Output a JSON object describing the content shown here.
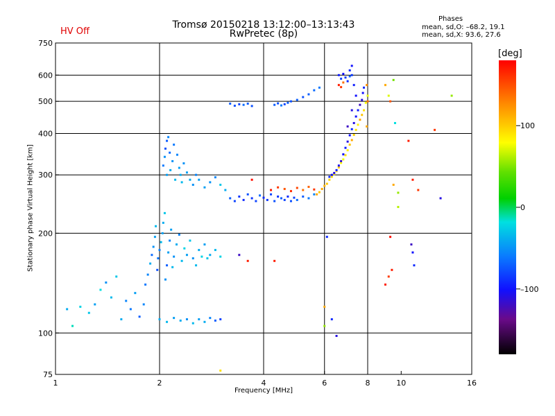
{
  "header": {
    "title": "Tromsø 20150218 13:12:00–13:13:43",
    "subtitle": "RwPretec (8p)",
    "status": "HV Off",
    "status_color": "#e00000"
  },
  "phases": {
    "title": "Phases",
    "o_line": "mean, sd,O: –68.2, 19.1",
    "x_line": "mean, sd,X:  93.6, 27.6"
  },
  "colorbar": {
    "unit": "[deg]",
    "ticks": [
      {
        "value": 100,
        "label": "100"
      },
      {
        "value": 0,
        "label": "0"
      },
      {
        "value": -100,
        "label": "–100"
      }
    ],
    "range": [
      -180,
      180
    ]
  },
  "chart_data": {
    "type": "scatter",
    "xlabel": "Frequency [MHz]",
    "ylabel": "Stationary phase Virtual Height [km]",
    "x_scale": "log",
    "y_scale": "log",
    "xlim": [
      1,
      16
    ],
    "ylim": [
      75,
      750
    ],
    "x_ticks": [
      {
        "value": 1,
        "label": "1"
      },
      {
        "value": 2,
        "label": "2"
      },
      {
        "value": 4,
        "label": "4"
      },
      {
        "value": 6,
        "label": "6"
      },
      {
        "value": 8,
        "label": "8"
      },
      {
        "value": 10,
        "label": "10"
      },
      {
        "value": 16,
        "label": "16"
      }
    ],
    "y_ticks": [
      {
        "value": 75,
        "label": "75"
      },
      {
        "value": 100,
        "label": "100"
      },
      {
        "value": 200,
        "label": "200"
      },
      {
        "value": 300,
        "label": "300"
      },
      {
        "value": 400,
        "label": "400"
      },
      {
        "value": 500,
        "label": "500"
      },
      {
        "value": 600,
        "label": "600"
      },
      {
        "value": 750,
        "label": "750"
      }
    ],
    "grid_x": [
      2,
      4,
      6,
      8
    ],
    "grid_y": [
      100,
      200,
      300,
      400,
      500,
      600
    ],
    "points": [
      [
        1.08,
        118,
        -40
      ],
      [
        1.12,
        105,
        -15
      ],
      [
        1.18,
        120,
        -25
      ],
      [
        1.25,
        115,
        -30
      ],
      [
        1.3,
        122,
        -45
      ],
      [
        1.35,
        135,
        -20
      ],
      [
        1.4,
        142,
        -50
      ],
      [
        1.45,
        128,
        -35
      ],
      [
        1.5,
        148,
        -30
      ],
      [
        1.55,
        110,
        -40
      ],
      [
        1.6,
        125,
        -55
      ],
      [
        1.65,
        118,
        -60
      ],
      [
        1.7,
        132,
        -45
      ],
      [
        1.75,
        112,
        -70
      ],
      [
        1.8,
        122,
        -55
      ],
      [
        1.82,
        140,
        -60
      ],
      [
        1.85,
        150,
        -55
      ],
      [
        1.88,
        162,
        -40
      ],
      [
        1.9,
        172,
        -65
      ],
      [
        1.92,
        182,
        -50
      ],
      [
        1.94,
        195,
        -45
      ],
      [
        1.95,
        210,
        -35
      ],
      [
        1.97,
        155,
        -75
      ],
      [
        1.98,
        168,
        -60
      ],
      [
        2.0,
        178,
        -55
      ],
      [
        2.02,
        188,
        -35
      ],
      [
        2.04,
        200,
        -45
      ],
      [
        2.05,
        215,
        -40
      ],
      [
        2.07,
        230,
        -30
      ],
      [
        2.08,
        145,
        -50
      ],
      [
        2.1,
        160,
        -70
      ],
      [
        2.12,
        175,
        -45
      ],
      [
        2.14,
        190,
        -55
      ],
      [
        2.16,
        205,
        -45
      ],
      [
        2.18,
        158,
        -35
      ],
      [
        2.2,
        170,
        -50
      ],
      [
        2.24,
        185,
        -40
      ],
      [
        2.28,
        198,
        -55
      ],
      [
        2.32,
        165,
        -35
      ],
      [
        2.36,
        180,
        -25
      ],
      [
        2.4,
        172,
        -45
      ],
      [
        2.45,
        190,
        -30
      ],
      [
        2.5,
        168,
        -50
      ],
      [
        2.55,
        160,
        -35
      ],
      [
        2.6,
        178,
        -40
      ],
      [
        2.65,
        170,
        -25
      ],
      [
        2.7,
        185,
        -45
      ],
      [
        2.75,
        168,
        -30
      ],
      [
        2.8,
        172,
        -40
      ],
      [
        2.9,
        178,
        -35
      ],
      [
        3.0,
        170,
        -25
      ],
      [
        2.05,
        320,
        -60
      ],
      [
        2.07,
        340,
        -50
      ],
      [
        2.08,
        360,
        -75
      ],
      [
        2.1,
        380,
        -70
      ],
      [
        2.1,
        300,
        -45
      ],
      [
        2.12,
        390,
        -55
      ],
      [
        2.14,
        350,
        -65
      ],
      [
        2.15,
        310,
        -40
      ],
      [
        2.18,
        330,
        -50
      ],
      [
        2.2,
        370,
        -60
      ],
      [
        2.22,
        290,
        -35
      ],
      [
        2.25,
        345,
        -55
      ],
      [
        2.28,
        315,
        -45
      ],
      [
        2.3,
        300,
        -40
      ],
      [
        2.32,
        285,
        -35
      ],
      [
        2.35,
        325,
        -50
      ],
      [
        2.4,
        305,
        -45
      ],
      [
        2.45,
        290,
        -40
      ],
      [
        2.5,
        280,
        -50
      ],
      [
        2.55,
        300,
        -55
      ],
      [
        2.6,
        290,
        -45
      ],
      [
        2.7,
        275,
        -45
      ],
      [
        2.8,
        285,
        -50
      ],
      [
        2.9,
        295,
        -55
      ],
      [
        3.0,
        280,
        -30
      ],
      [
        3.1,
        270,
        -40
      ],
      [
        3.2,
        255,
        -70
      ],
      [
        3.3,
        250,
        -80
      ],
      [
        3.4,
        258,
        -85
      ],
      [
        3.5,
        252,
        -90
      ],
      [
        3.6,
        262,
        -75
      ],
      [
        3.7,
        255,
        -85
      ],
      [
        3.8,
        250,
        -80
      ],
      [
        3.9,
        260,
        -65
      ],
      [
        4.0,
        256,
        -90
      ],
      [
        4.1,
        252,
        -85
      ],
      [
        4.2,
        262,
        -80
      ],
      [
        4.3,
        250,
        -75
      ],
      [
        4.4,
        258,
        -85
      ],
      [
        4.5,
        255,
        -70
      ],
      [
        4.6,
        252,
        -80
      ],
      [
        4.7,
        258,
        -90
      ],
      [
        4.8,
        250,
        -75
      ],
      [
        4.9,
        256,
        -80
      ],
      [
        5.0,
        252,
        -65
      ],
      [
        5.2,
        258,
        -70
      ],
      [
        5.4,
        255,
        -60
      ],
      [
        5.6,
        262,
        -55
      ],
      [
        4.2,
        270,
        170
      ],
      [
        4.4,
        275,
        160
      ],
      [
        4.6,
        272,
        150
      ],
      [
        4.8,
        268,
        165
      ],
      [
        5.0,
        274,
        155
      ],
      [
        5.2,
        270,
        140
      ],
      [
        5.4,
        276,
        145
      ],
      [
        5.6,
        271,
        160
      ],
      [
        3.7,
        290,
        175
      ],
      [
        5.7,
        262,
        120
      ],
      [
        5.8,
        266,
        110
      ],
      [
        5.9,
        272,
        120
      ],
      [
        6.0,
        278,
        115
      ],
      [
        6.1,
        282,
        110
      ],
      [
        6.2,
        290,
        105
      ],
      [
        6.3,
        296,
        100
      ],
      [
        6.4,
        302,
        95
      ],
      [
        6.5,
        308,
        105
      ],
      [
        6.6,
        316,
        110
      ],
      [
        6.7,
        326,
        90
      ],
      [
        6.8,
        334,
        85
      ],
      [
        6.9,
        344,
        100
      ],
      [
        7.0,
        356,
        95
      ],
      [
        7.1,
        370,
        110
      ],
      [
        7.2,
        382,
        120
      ],
      [
        7.3,
        396,
        105
      ],
      [
        7.4,
        410,
        100
      ],
      [
        7.5,
        425,
        95
      ],
      [
        7.6,
        440,
        120
      ],
      [
        7.7,
        455,
        110
      ],
      [
        7.8,
        470,
        100
      ],
      [
        7.9,
        495,
        90
      ],
      [
        8.0,
        520,
        85
      ],
      [
        7.95,
        560,
        130
      ],
      [
        8.0,
        500,
        140
      ],
      [
        7.95,
        420,
        120
      ],
      [
        6.2,
        296,
        -90
      ],
      [
        6.3,
        300,
        -100
      ],
      [
        6.4,
        304,
        -110
      ],
      [
        6.5,
        310,
        -95
      ],
      [
        6.6,
        320,
        -105
      ],
      [
        6.7,
        330,
        -115
      ],
      [
        6.8,
        346,
        -100
      ],
      [
        6.9,
        362,
        -95
      ],
      [
        7.0,
        378,
        -110
      ],
      [
        7.1,
        395,
        -100
      ],
      [
        7.2,
        412,
        -90
      ],
      [
        7.3,
        430,
        -110
      ],
      [
        7.4,
        450,
        -100
      ],
      [
        7.5,
        470,
        -95
      ],
      [
        7.6,
        488,
        -120
      ],
      [
        7.7,
        505,
        -110
      ],
      [
        7.75,
        530,
        -100
      ],
      [
        7.8,
        550,
        -90
      ],
      [
        7.0,
        420,
        -120
      ],
      [
        7.2,
        470,
        -110
      ],
      [
        7.4,
        520,
        -100
      ],
      [
        7.3,
        560,
        -95
      ],
      [
        7.2,
        600,
        -85
      ],
      [
        6.6,
        600,
        -95
      ],
      [
        6.7,
        585,
        -80
      ],
      [
        6.8,
        605,
        -100
      ],
      [
        6.9,
        590,
        -85
      ],
      [
        7.0,
        575,
        -90
      ],
      [
        7.1,
        595,
        -70
      ],
      [
        7.2,
        640,
        -100
      ],
      [
        7.1,
        620,
        -90
      ],
      [
        3.2,
        492,
        -70
      ],
      [
        3.3,
        485,
        -75
      ],
      [
        3.4,
        490,
        -80
      ],
      [
        3.5,
        488,
        -65
      ],
      [
        3.6,
        492,
        -70
      ],
      [
        3.7,
        484,
        -75
      ],
      [
        4.3,
        488,
        -70
      ],
      [
        4.4,
        493,
        -75
      ],
      [
        4.5,
        486,
        -60
      ],
      [
        4.6,
        490,
        -80
      ],
      [
        4.7,
        495,
        -70
      ],
      [
        4.8,
        500,
        -75
      ],
      [
        5.0,
        505,
        -70
      ],
      [
        5.2,
        515,
        -75
      ],
      [
        5.4,
        525,
        -70
      ],
      [
        5.6,
        540,
        -65
      ],
      [
        5.8,
        550,
        -60
      ],
      [
        6.6,
        560,
        170
      ],
      [
        6.7,
        552,
        160
      ],
      [
        6.8,
        570,
        140
      ],
      [
        2.0,
        110,
        -40
      ],
      [
        2.1,
        108,
        -35
      ],
      [
        2.2,
        111,
        -45
      ],
      [
        2.3,
        109,
        -40
      ],
      [
        2.4,
        110,
        -50
      ],
      [
        2.5,
        107,
        -35
      ],
      [
        2.6,
        110,
        -45
      ],
      [
        2.7,
        108,
        -40
      ],
      [
        2.8,
        111,
        -55
      ],
      [
        2.9,
        109,
        -70
      ],
      [
        3.0,
        110,
        -80
      ],
      [
        9.0,
        560,
        120
      ],
      [
        9.2,
        520,
        80
      ],
      [
        9.5,
        580,
        50
      ],
      [
        9.3,
        500,
        150
      ],
      [
        9.6,
        430,
        -20
      ],
      [
        10.5,
        380,
        170
      ],
      [
        10.8,
        290,
        170
      ],
      [
        11.2,
        270,
        160
      ],
      [
        12.5,
        410,
        160
      ],
      [
        13.0,
        255,
        -110
      ],
      [
        14.0,
        520,
        60
      ],
      [
        9.3,
        195,
        175
      ],
      [
        9.4,
        155,
        170
      ],
      [
        9.2,
        148,
        160
      ],
      [
        9.5,
        280,
        120
      ],
      [
        10.7,
        185,
        -120
      ],
      [
        10.8,
        175,
        -100
      ],
      [
        10.9,
        160,
        -90
      ],
      [
        9.0,
        140,
        170
      ],
      [
        9.8,
        265,
        60
      ],
      [
        9.8,
        240,
        70
      ],
      [
        6.0,
        120,
        120
      ],
      [
        6.1,
        195,
        -90
      ],
      [
        6.3,
        110,
        -90
      ],
      [
        6.5,
        98,
        -110
      ],
      [
        6.0,
        105,
        60
      ],
      [
        4.3,
        165,
        170
      ],
      [
        3.6,
        165,
        170
      ],
      [
        3.4,
        172,
        -120
      ],
      [
        3.0,
        77,
        100
      ]
    ]
  }
}
